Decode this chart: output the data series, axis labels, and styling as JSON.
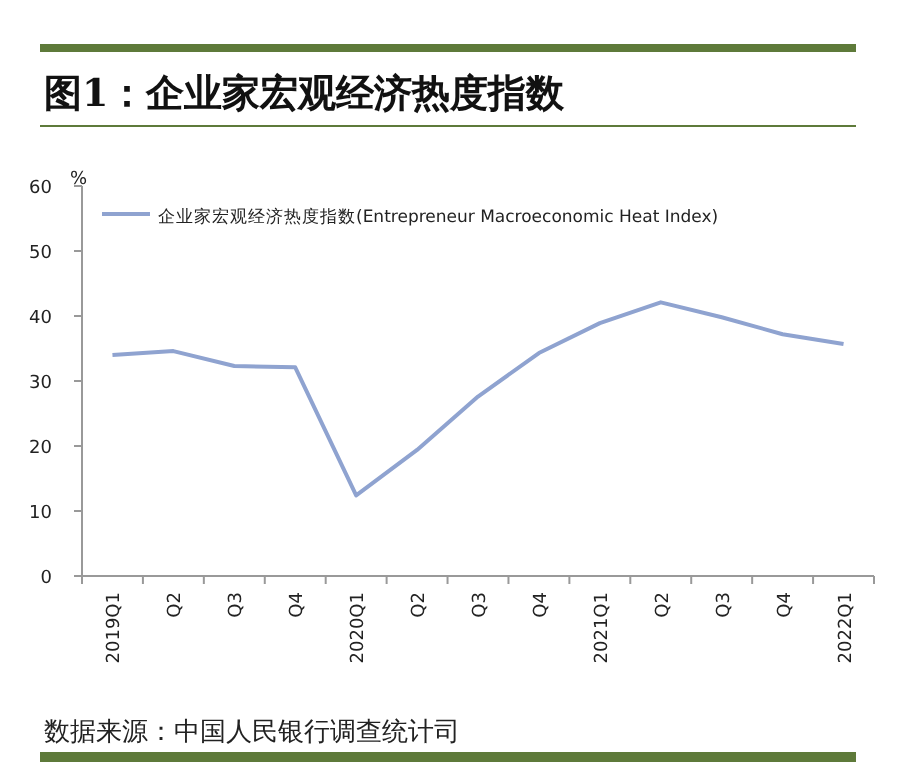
{
  "chart_data": {
    "type": "line",
    "title": "图1：企业家宏观经济热度指数",
    "ylabel": "%",
    "categories": [
      "2019Q1",
      "Q2",
      "Q3",
      "Q4",
      "2020Q1",
      "Q2",
      "Q3",
      "Q4",
      "2021Q1",
      "Q2",
      "Q3",
      "Q4",
      "2022Q1"
    ],
    "series": [
      {
        "name": "企业家宏观经济热度指数(Entrepreneur Macroeconomic Heat Index)",
        "color": "#8fa3d0",
        "values": [
          34.0,
          34.6,
          32.3,
          32.1,
          12.4,
          19.4,
          27.6,
          34.3,
          38.9,
          42.1,
          39.8,
          37.2,
          35.7
        ]
      }
    ],
    "ylim": [
      0,
      60
    ],
    "yticks": [
      0,
      10,
      20,
      30,
      40,
      50,
      60
    ],
    "grid": false,
    "legend": "top left",
    "annotations": [
      "数据来源：中国人民银行调查统计司"
    ]
  }
}
